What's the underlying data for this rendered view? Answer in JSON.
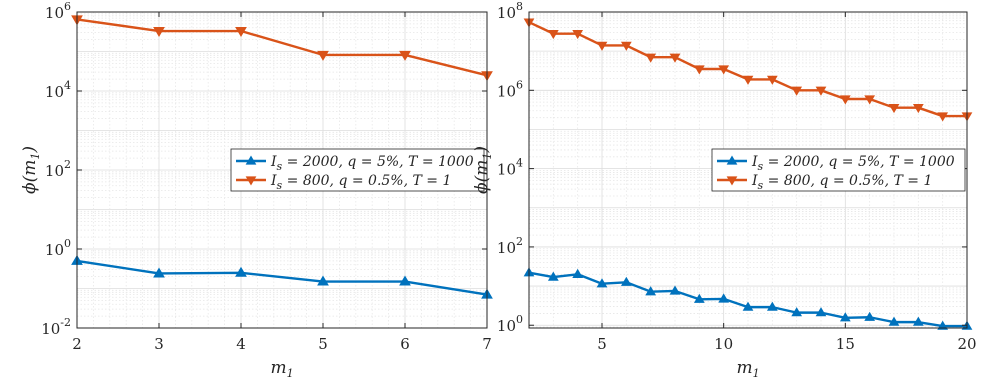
{
  "chart_data": [
    {
      "type": "line",
      "yscale": "log",
      "xlabel": "m₁",
      "ylabel": "ϕ(m₁)",
      "xlim": [
        2,
        7
      ],
      "ylim": [
        0.01,
        1000000
      ],
      "xticks": [
        2,
        3,
        4,
        5,
        6,
        7
      ],
      "yticks": [
        0.01,
        1,
        100,
        10000,
        1000000
      ],
      "ytick_labels": [
        {
          "base": "10",
          "exp": "-2"
        },
        {
          "base": "10",
          "exp": "0"
        },
        {
          "base": "10",
          "exp": "2"
        },
        {
          "base": "10",
          "exp": "4"
        },
        {
          "base": "10",
          "exp": "6"
        }
      ],
      "grid": true,
      "minor_grid": true,
      "legend_position": "right",
      "series": [
        {
          "name": "Iₛ = 2000, q = 5%, T = 1000",
          "color": "#0072BD",
          "marker": "up-triangle",
          "x": [
            2,
            3,
            4,
            5,
            6,
            7
          ],
          "y": [
            0.5,
            0.24,
            0.25,
            0.15,
            0.15,
            0.07
          ]
        },
        {
          "name": "Iₛ = 800, q = 0.5%, T = 1",
          "color": "#D95319",
          "marker": "down-triangle",
          "x": [
            2,
            3,
            4,
            5,
            6,
            7
          ],
          "y": [
            650000,
            330000,
            330000,
            82000,
            82000,
            25000
          ]
        }
      ]
    },
    {
      "type": "line",
      "yscale": "log",
      "xlabel": "m₁",
      "ylabel": "ϕ(m₁)",
      "xlim": [
        2,
        20
      ],
      "ylim": [
        0.85,
        100000000
      ],
      "xticks": [
        5,
        10,
        15,
        20
      ],
      "yticks": [
        1,
        100,
        10000,
        1000000,
        100000000
      ],
      "ytick_labels": [
        {
          "base": "10",
          "exp": "0"
        },
        {
          "base": "10",
          "exp": "2"
        },
        {
          "base": "10",
          "exp": "4"
        },
        {
          "base": "10",
          "exp": "6"
        },
        {
          "base": "10",
          "exp": "8"
        }
      ],
      "grid": true,
      "minor_grid": true,
      "legend_position": "right",
      "series": [
        {
          "name": "Iₛ = 2000, q = 5%, T = 1000",
          "color": "#0072BD",
          "marker": "up-triangle",
          "x": [
            2,
            3,
            4,
            5,
            6,
            7,
            8,
            9,
            10,
            11,
            12,
            13,
            14,
            15,
            16,
            17,
            18,
            19,
            20
          ],
          "y": [
            22,
            17,
            20,
            11.5,
            12.5,
            7.2,
            7.5,
            4.6,
            4.7,
            2.9,
            2.9,
            2.1,
            2.1,
            1.55,
            1.6,
            1.2,
            1.2,
            0.95,
            0.95
          ]
        },
        {
          "name": "Iₛ = 800, q = 0.5%, T = 1",
          "color": "#D95319",
          "marker": "down-triangle",
          "x": [
            2,
            3,
            4,
            5,
            6,
            7,
            8,
            9,
            10,
            11,
            12,
            13,
            14,
            15,
            16,
            17,
            18,
            19,
            20
          ],
          "y": [
            55000000,
            28000000,
            28000000,
            14000000,
            14000000,
            7000000,
            7000000,
            3500000,
            3500000,
            1900000,
            1900000,
            1000000,
            1000000,
            600000,
            600000,
            360000,
            360000,
            220000,
            220000
          ]
        }
      ]
    }
  ]
}
